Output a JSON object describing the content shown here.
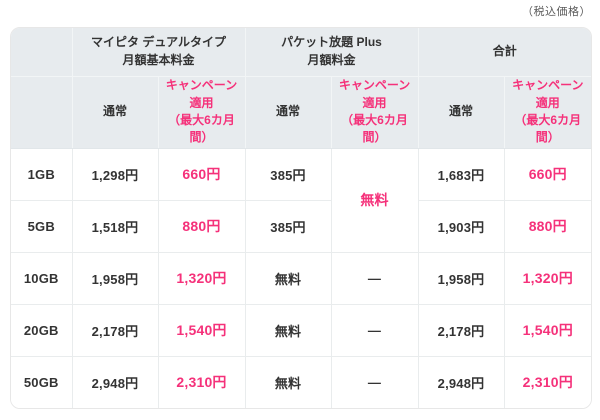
{
  "page": {
    "tax_note": "（税込価格）"
  },
  "colors": {
    "accent_pink": "#f5317a",
    "header_bg": "#e7ebee",
    "text_dark": "#333333",
    "grid_line": "#e9eced"
  },
  "chart_data": {
    "type": "table",
    "note": "（税込価格）",
    "groups": {
      "mypita": "マイピタ デュアルタイプ\n月額基本料金",
      "packet": "パケット放題 Plus\n月額料金",
      "total": "合計"
    },
    "subheaders": {
      "normal": "通常",
      "campaign": "キャンペーン\n適用\n（最大6カ月\n間）"
    },
    "rows": [
      {
        "plan": "1GB",
        "mypita_normal": "1,298円",
        "mypita_campaign": "660円",
        "packet_normal": "385円",
        "packet_campaign": "無料",
        "total_normal": "1,683円",
        "total_campaign": "660円"
      },
      {
        "plan": "5GB",
        "mypita_normal": "1,518円",
        "mypita_campaign": "880円",
        "packet_normal": "385円",
        "total_normal": "1,903円",
        "total_campaign": "880円"
      },
      {
        "plan": "10GB",
        "mypita_normal": "1,958円",
        "mypita_campaign": "1,320円",
        "packet_normal": "無料",
        "packet_campaign": "—",
        "total_normal": "1,958円",
        "total_campaign": "1,320円"
      },
      {
        "plan": "20GB",
        "mypita_normal": "2,178円",
        "mypita_campaign": "1,540円",
        "packet_normal": "無料",
        "packet_campaign": "—",
        "total_normal": "2,178円",
        "total_campaign": "1,540円"
      },
      {
        "plan": "50GB",
        "mypita_normal": "2,948円",
        "mypita_campaign": "2,310円",
        "packet_normal": "無料",
        "packet_campaign": "—",
        "total_normal": "2,948円",
        "total_campaign": "2,310円"
      }
    ]
  }
}
